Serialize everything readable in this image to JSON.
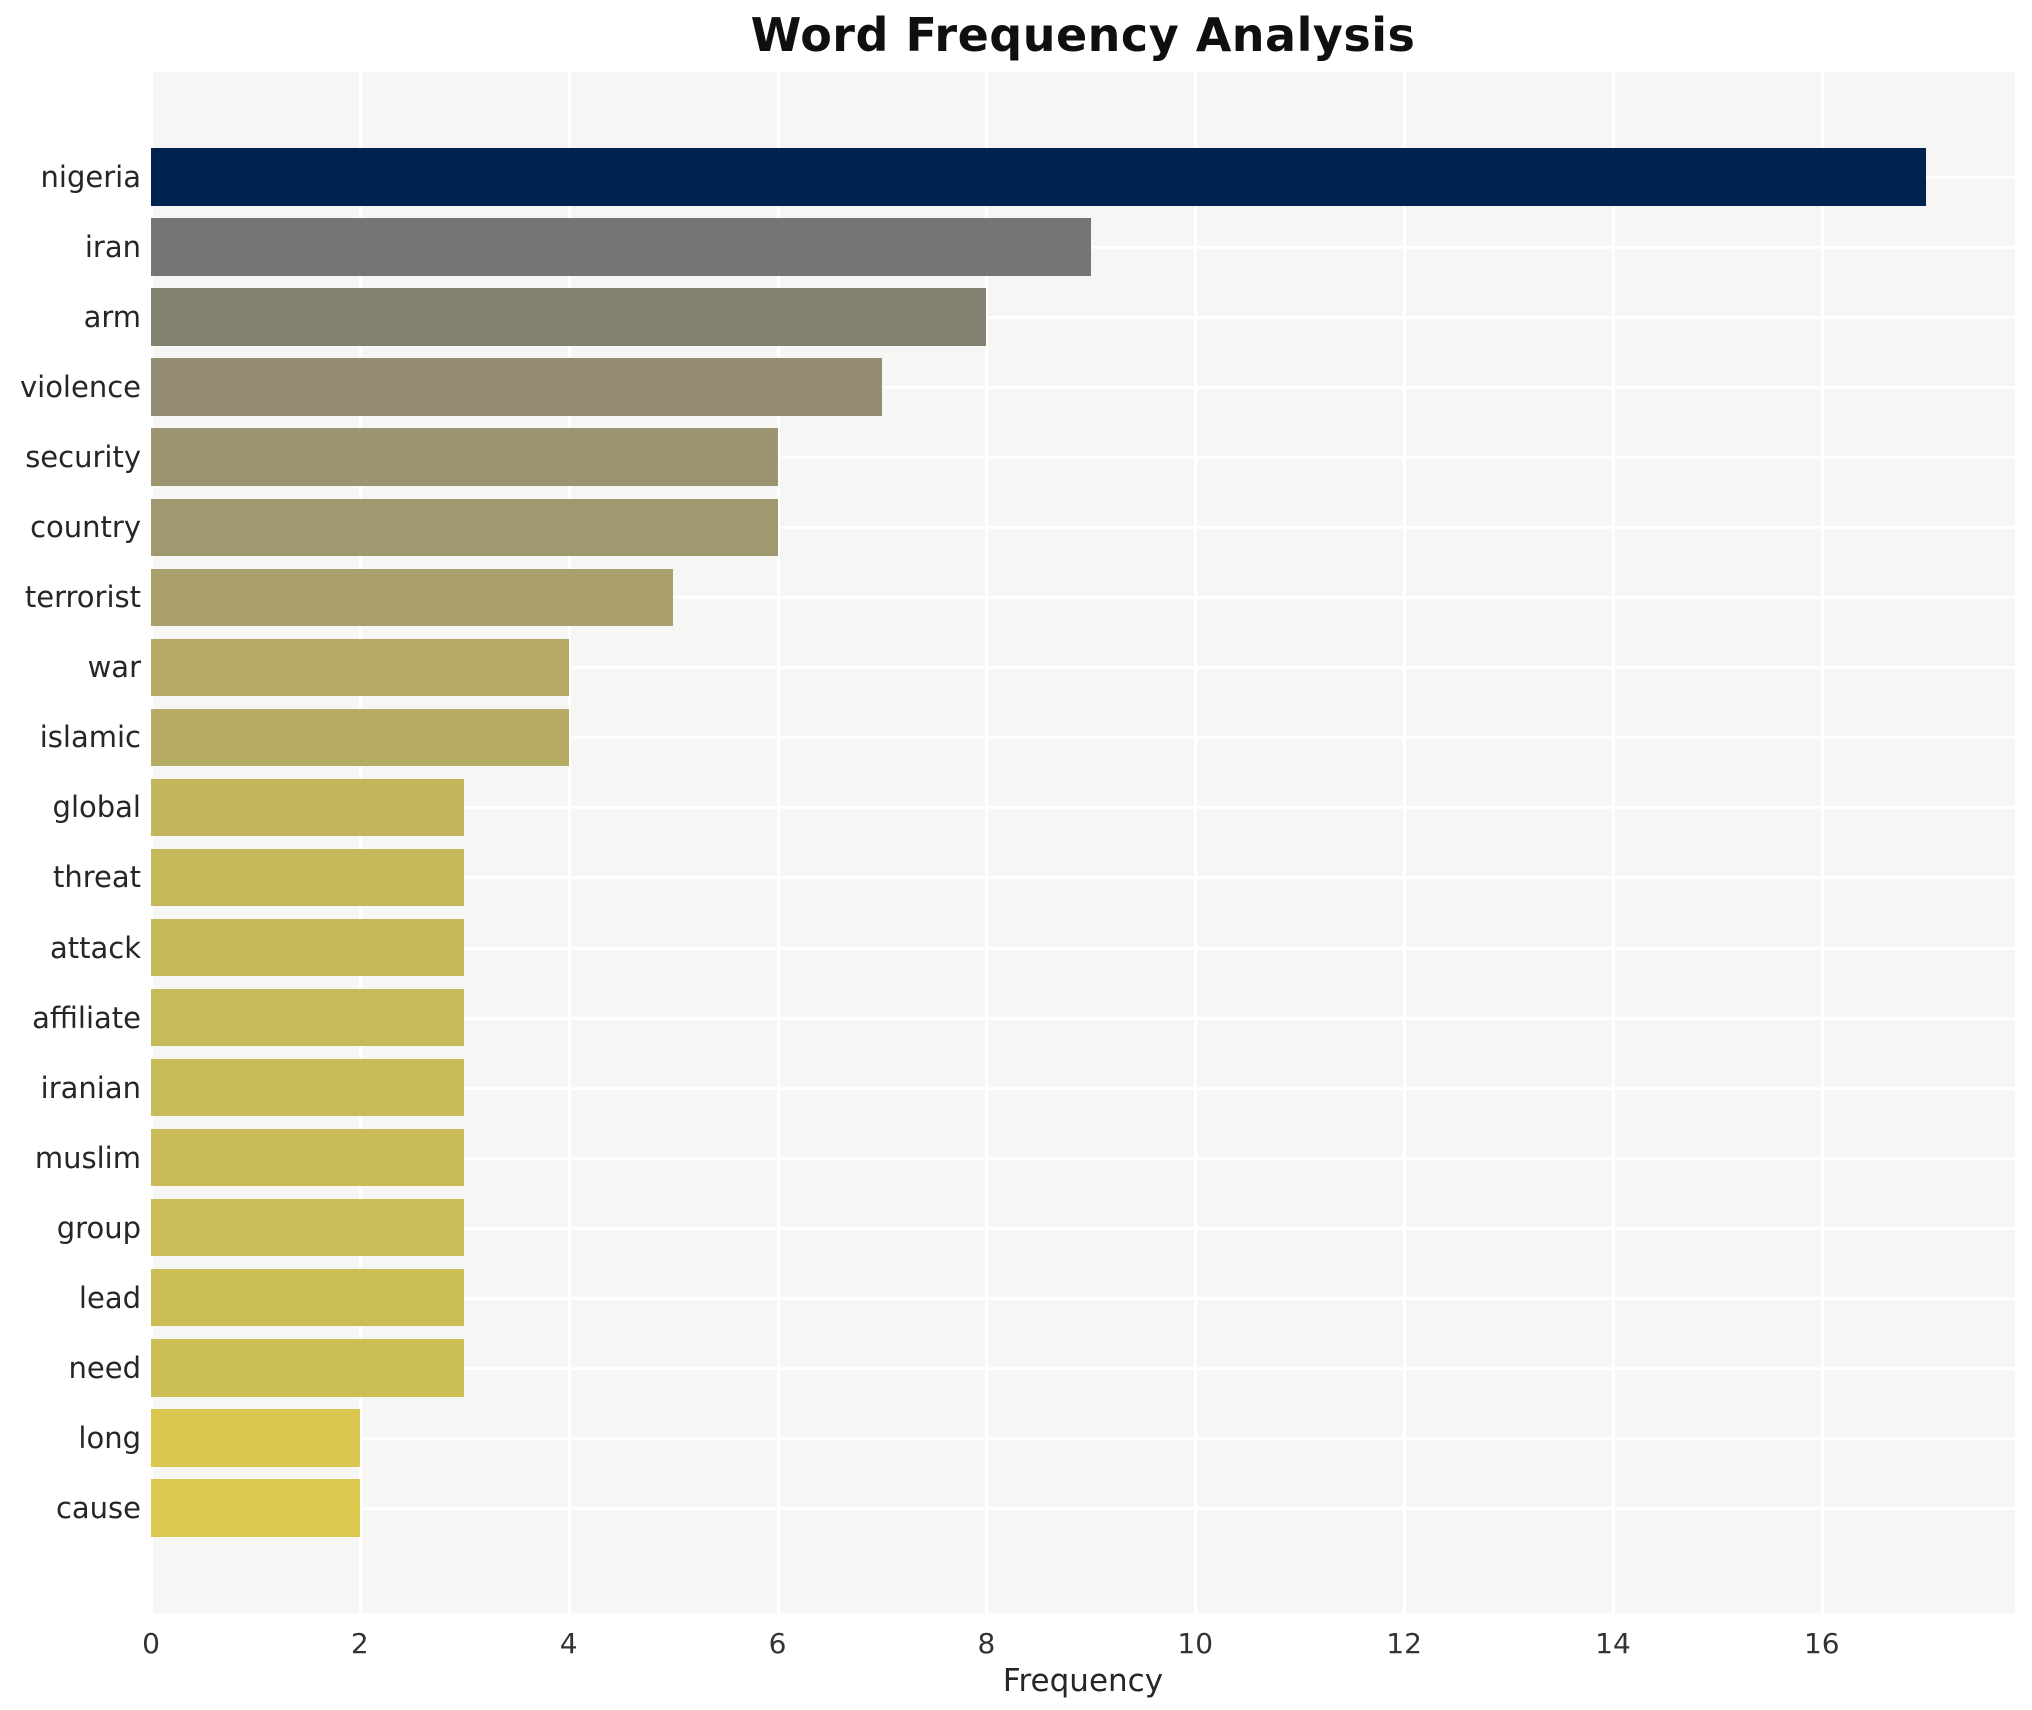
{
  "title": "Word Frequency Analysis",
  "chart_data": {
    "type": "bar",
    "orientation": "horizontal",
    "title": "Word Frequency Analysis",
    "xlabel": "Frequency",
    "ylabel": "",
    "categories": [
      "nigeria",
      "iran",
      "arm",
      "violence",
      "security",
      "country",
      "terrorist",
      "war",
      "islamic",
      "global",
      "threat",
      "attack",
      "affiliate",
      "iranian",
      "muslim",
      "group",
      "lead",
      "need",
      "long",
      "cause"
    ],
    "values": [
      17,
      9,
      8,
      7,
      6,
      6,
      5,
      4,
      4,
      3,
      3,
      3,
      3,
      3,
      3,
      3,
      3,
      3,
      2,
      2
    ],
    "bar_colors": [
      "#00224e",
      "#757575",
      "#838170",
      "#948d74",
      "#9d956f",
      "#a0986e",
      "#aaa06b",
      "#b5ab66",
      "#b6ac65",
      "#c3b65c",
      "#c5b85b",
      "#c6b95b",
      "#c7ba5a",
      "#c8bb59",
      "#c9bc58",
      "#cabd58",
      "#cbbe57",
      "#ccbf56",
      "#dbc64f",
      "#dcc84e"
    ],
    "xticks": [
      0,
      2,
      4,
      6,
      8,
      10,
      12,
      14,
      16
    ],
    "xlim": [
      0,
      17.85
    ],
    "grid": true,
    "legend": false,
    "plot_background": "#f6f6f4",
    "grid_color": "#ffffff",
    "figure_background": "#ffffff"
  }
}
